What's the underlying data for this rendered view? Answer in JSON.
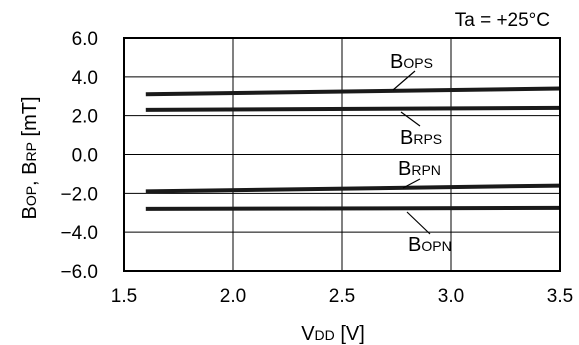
{
  "chart_data": {
    "type": "line",
    "title": "",
    "condition": "Ta = +25°C",
    "xlabel": {
      "main": "V",
      "sub": "DD",
      "unit": " [V]"
    },
    "ylabel": {
      "a_main": "B",
      "a_sub": "OP",
      "sep": ", ",
      "b_main": "B",
      "b_sub": "RP",
      "unit": " [mT]"
    },
    "xlim": [
      1.5,
      3.5
    ],
    "ylim": [
      -6.0,
      6.0
    ],
    "x_ticks": [
      1.5,
      2.0,
      2.5,
      3.0,
      3.5
    ],
    "x_tick_labels": [
      "1.5",
      "2.0",
      "2.5",
      "3.0",
      "3.5"
    ],
    "y_ticks": [
      6.0,
      4.0,
      2.0,
      0.0,
      -2.0,
      -4.0,
      -6.0
    ],
    "y_tick_labels": [
      "6.0",
      "4.0",
      "2.0",
      "0.0",
      "−2.0",
      "−4.0",
      "−6.0"
    ],
    "grid": true,
    "line_color": "#1a1a1a",
    "series": [
      {
        "name": "BOPS",
        "label_main": "B",
        "label_sub": "OPS",
        "x": [
          1.6,
          3.5
        ],
        "y": [
          3.1,
          3.4
        ]
      },
      {
        "name": "BRPS",
        "label_main": "B",
        "label_sub": "RPS",
        "x": [
          1.6,
          3.5
        ],
        "y": [
          2.3,
          2.4
        ]
      },
      {
        "name": "BRPN",
        "label_main": "B",
        "label_sub": "RPN",
        "x": [
          1.6,
          3.5
        ],
        "y": [
          -1.9,
          -1.6
        ]
      },
      {
        "name": "BOPN",
        "label_main": "B",
        "label_sub": "OPN",
        "x": [
          1.6,
          3.5
        ],
        "y": [
          -2.8,
          -2.75
        ]
      }
    ]
  }
}
